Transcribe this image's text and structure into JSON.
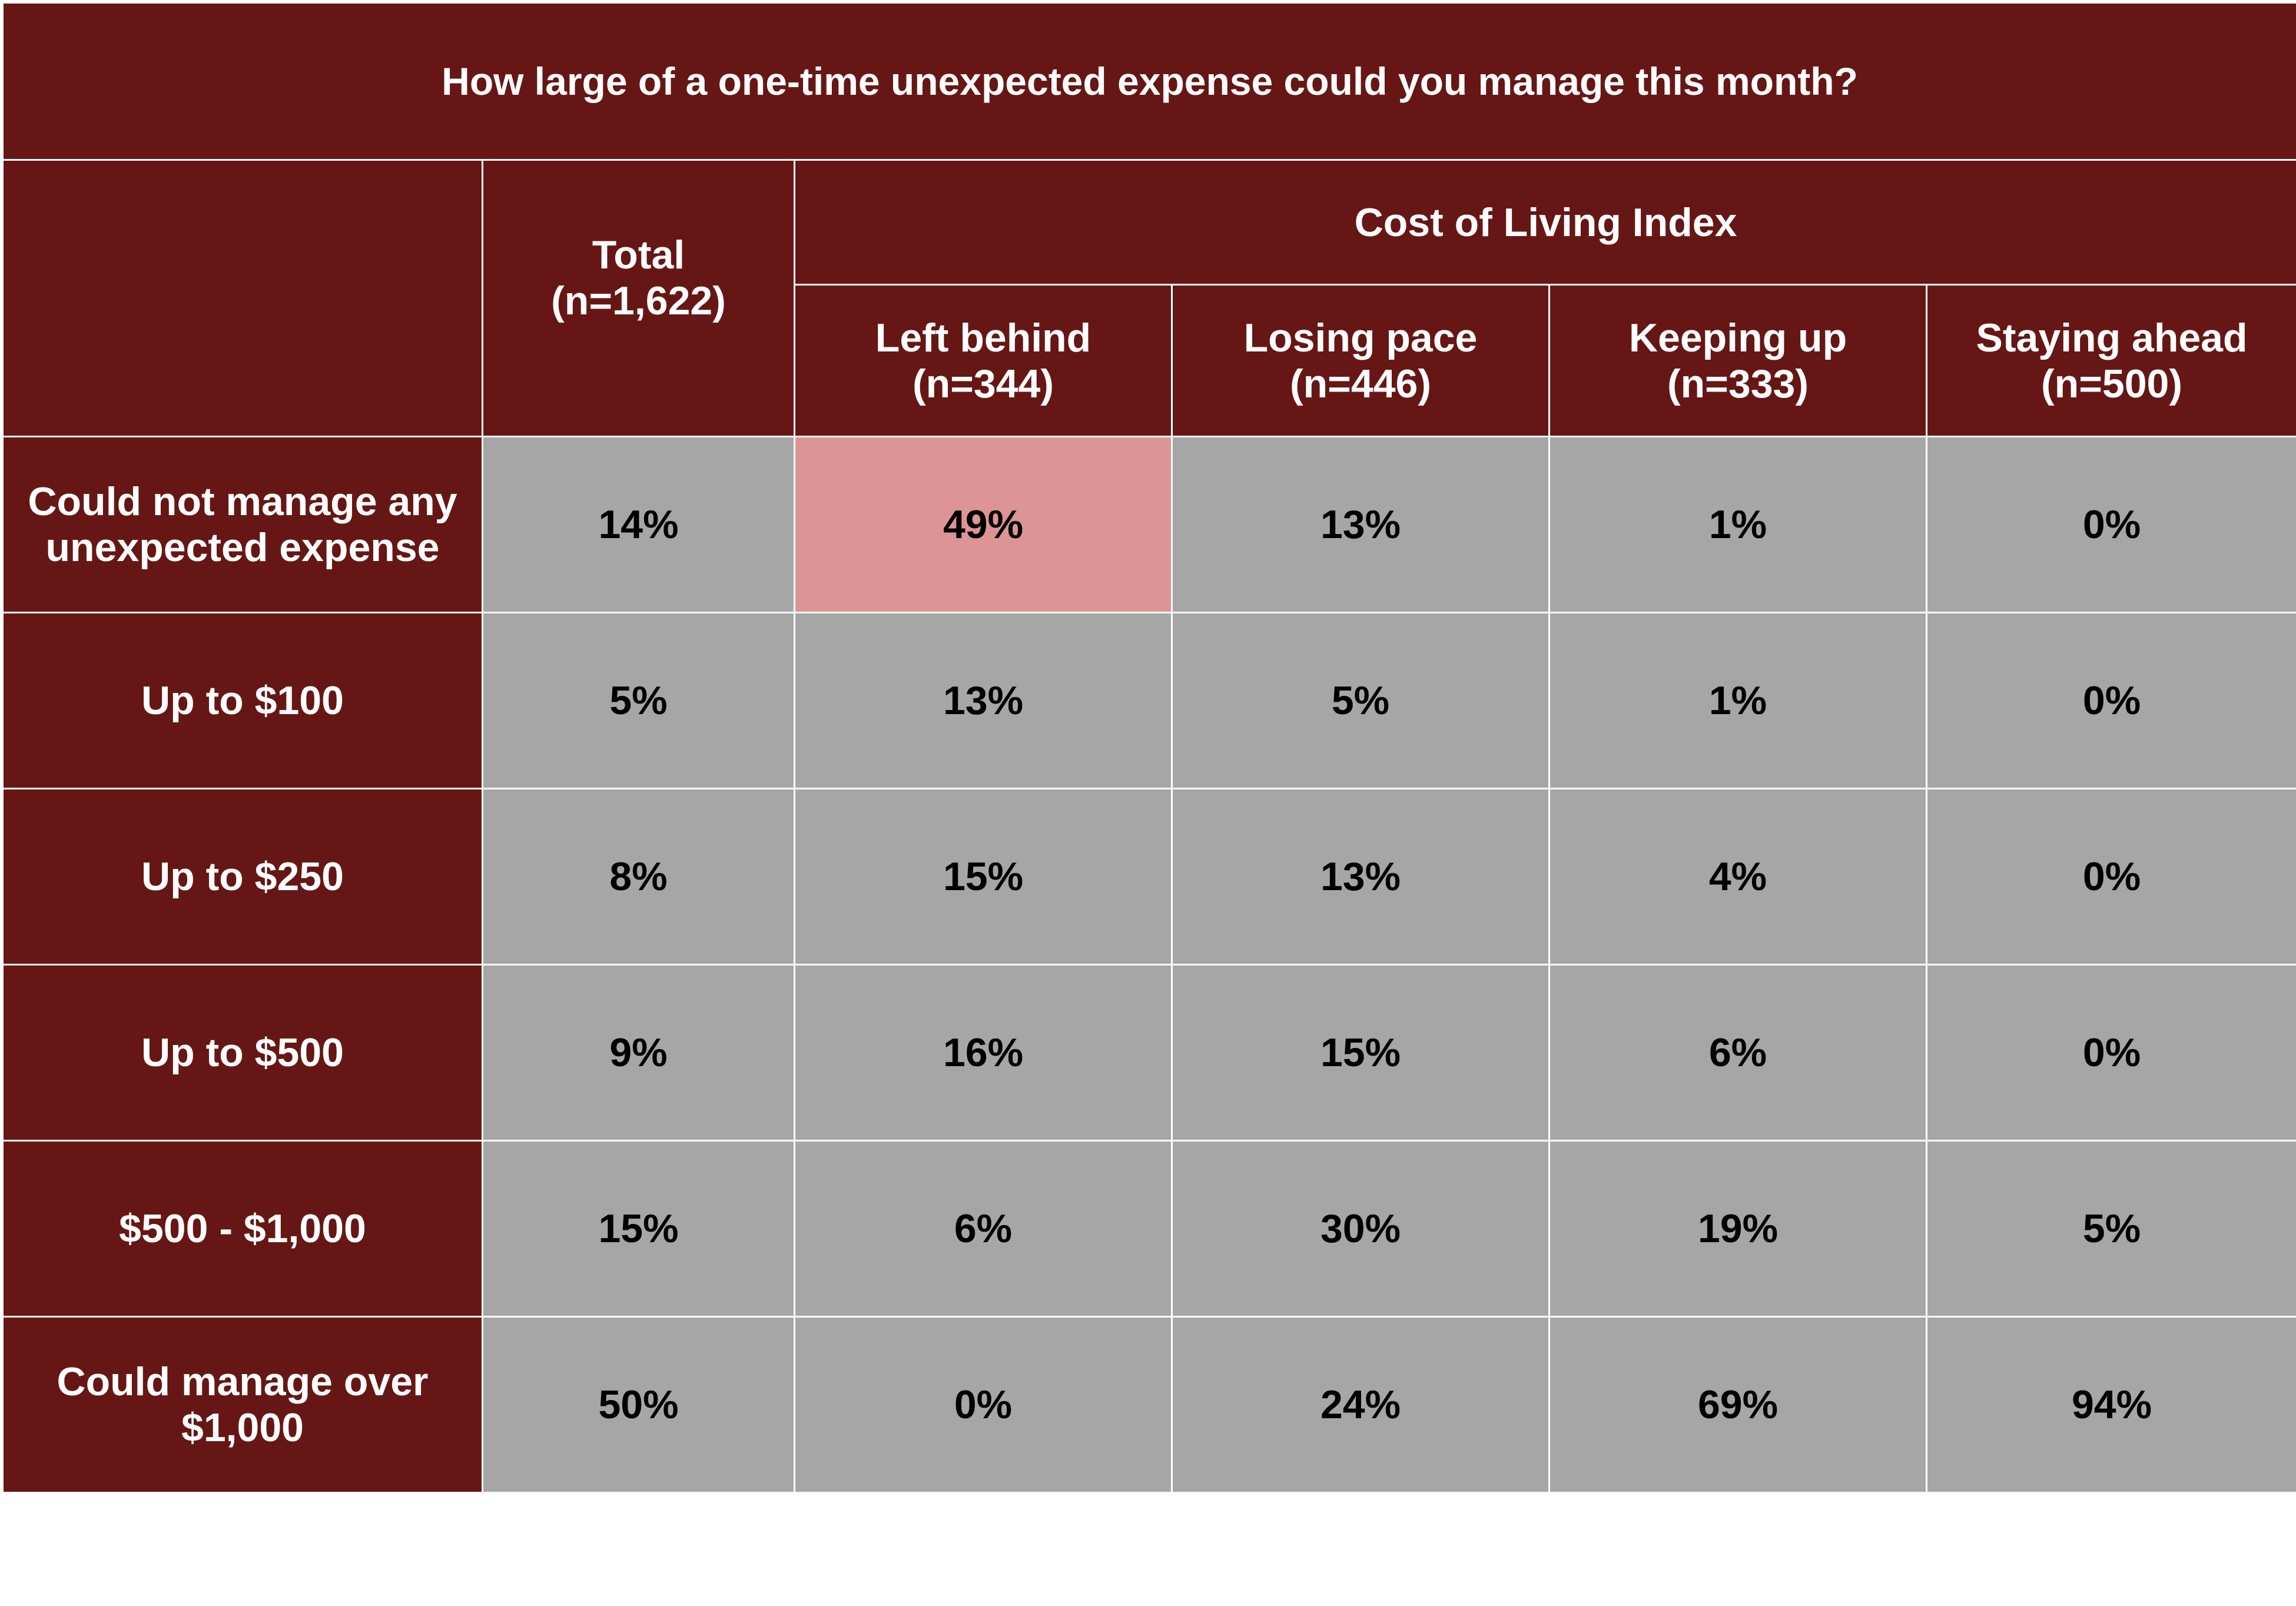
{
  "chart_data": {
    "type": "table",
    "title": "How large of a one-time unexpected expense could you manage this month?",
    "group_header": "Cost of Living Index",
    "total_column": {
      "label": "Total",
      "n": "(n=1,622)"
    },
    "columns": [
      {
        "label": "Left behind",
        "n": "(n=344)"
      },
      {
        "label": "Losing pace",
        "n": "(n=446)"
      },
      {
        "label": "Keeping up",
        "n": "(n=333)"
      },
      {
        "label": "Staying ahead",
        "n": "(n=500)"
      }
    ],
    "rows": [
      {
        "label": [
          "Could not manage any",
          "unexpected expense"
        ],
        "total": "14%",
        "values": [
          "49%",
          "13%",
          "1%",
          "0%"
        ]
      },
      {
        "label": [
          "Up to $100"
        ],
        "total": "5%",
        "values": [
          "13%",
          "5%",
          "1%",
          "0%"
        ]
      },
      {
        "label": [
          "Up to $250"
        ],
        "total": "8%",
        "values": [
          "15%",
          "13%",
          "4%",
          "0%"
        ]
      },
      {
        "label": [
          "Up to $500"
        ],
        "total": "9%",
        "values": [
          "16%",
          "15%",
          "6%",
          "0%"
        ]
      },
      {
        "label": [
          "$500 - $1,000"
        ],
        "total": "15%",
        "values": [
          "6%",
          "30%",
          "19%",
          "5%"
        ]
      },
      {
        "label": [
          "Could manage over",
          "$1,000"
        ],
        "total": "50%",
        "values": [
          "0%",
          "24%",
          "69%",
          "94%"
        ]
      }
    ],
    "highlight": {
      "row": 0,
      "column": 0
    },
    "colors": {
      "header_bg": "#661715",
      "cell_bg": "#a6a6a6",
      "highlight_bg": "#dc9594",
      "header_text": "#ffffff",
      "cell_text": "#000000"
    }
  }
}
